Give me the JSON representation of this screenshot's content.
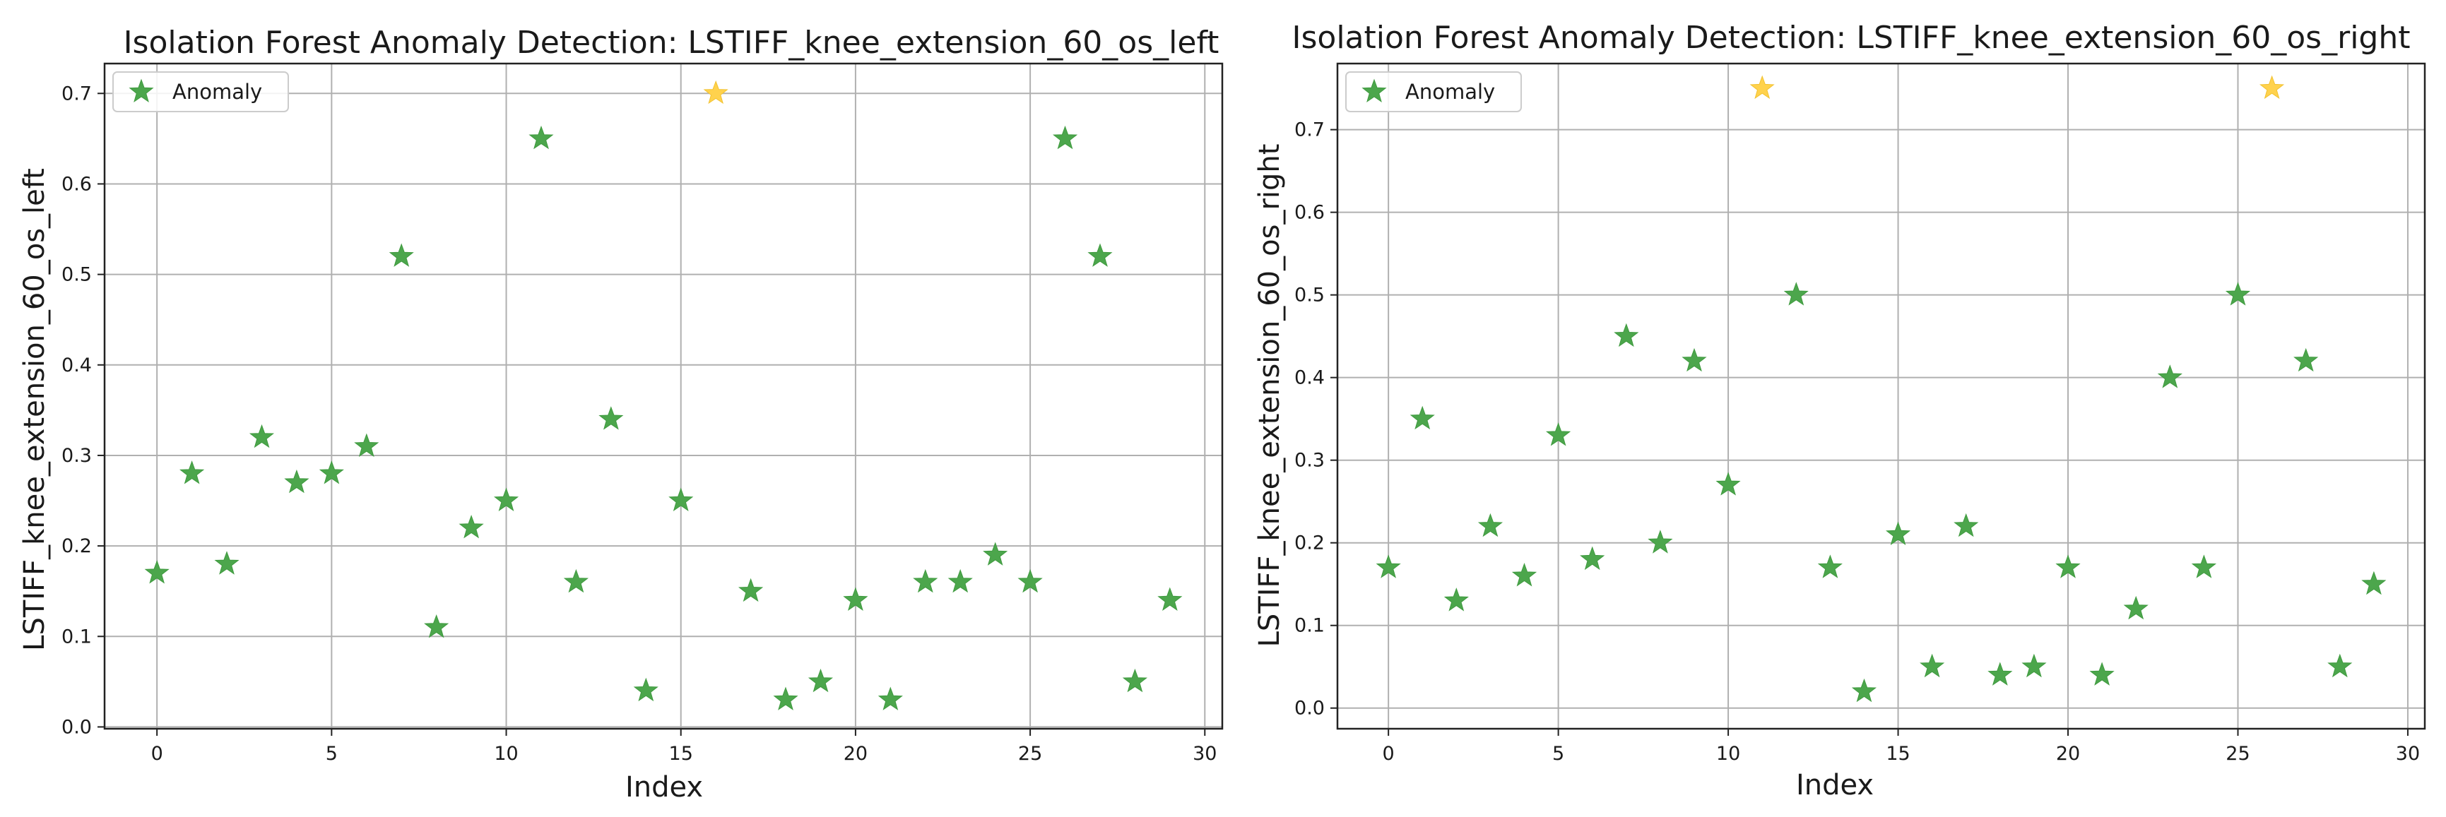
{
  "chart_data": [
    {
      "type": "scatter",
      "title": "Isolation Forest Anomaly Detection: LSTIFF_knee_extension_60_os_left",
      "xlabel": "Index",
      "ylabel": "LSTIFF_knee_extension_60_os_left",
      "xlim": [
        -1.5,
        30.5
      ],
      "ylim": [
        -0.002,
        0.733
      ],
      "xticks": [
        0,
        5,
        10,
        15,
        20,
        25,
        30
      ],
      "yticks": [
        0.0,
        0.1,
        0.2,
        0.3,
        0.4,
        0.5,
        0.6,
        0.7
      ],
      "grid": true,
      "legend": {
        "position": "top-left",
        "entries": [
          "Anomaly"
        ]
      },
      "colors": {
        "normal": "#4ca64c",
        "anomaly": "#ffd24d"
      },
      "x": [
        0,
        1,
        2,
        3,
        4,
        5,
        6,
        7,
        8,
        9,
        10,
        11,
        12,
        13,
        14,
        15,
        16,
        17,
        18,
        19,
        20,
        21,
        22,
        23,
        24,
        25,
        26,
        27,
        28,
        29
      ],
      "y": [
        0.17,
        0.28,
        0.18,
        0.32,
        0.27,
        0.28,
        0.31,
        0.52,
        0.11,
        0.22,
        0.25,
        0.65,
        0.16,
        0.34,
        0.04,
        0.25,
        0.7,
        0.15,
        0.03,
        0.05,
        0.14,
        0.03,
        0.16,
        0.16,
        0.19,
        0.16,
        0.65,
        0.52,
        0.05,
        0.14
      ],
      "anomaly_index": [
        16
      ]
    },
    {
      "type": "scatter",
      "title": "Isolation Forest Anomaly Detection: LSTIFF_knee_extension_60_os_right",
      "xlabel": "Index",
      "ylabel": "LSTIFF_knee_extension_60_os_right",
      "xlim": [
        -1.5,
        30.5
      ],
      "ylim": [
        -0.025,
        0.78
      ],
      "xticks": [
        0,
        5,
        10,
        15,
        20,
        25,
        30
      ],
      "yticks": [
        0.0,
        0.1,
        0.2,
        0.3,
        0.4,
        0.5,
        0.6,
        0.7
      ],
      "grid": true,
      "legend": {
        "position": "top-left",
        "entries": [
          "Anomaly"
        ]
      },
      "colors": {
        "normal": "#4ca64c",
        "anomaly": "#ffd24d"
      },
      "x": [
        0,
        1,
        2,
        3,
        4,
        5,
        6,
        7,
        8,
        9,
        10,
        11,
        12,
        13,
        14,
        15,
        16,
        17,
        18,
        19,
        20,
        21,
        22,
        23,
        24,
        25,
        26,
        27,
        28,
        29
      ],
      "y": [
        0.17,
        0.35,
        0.13,
        0.22,
        0.16,
        0.33,
        0.18,
        0.45,
        0.2,
        0.42,
        0.27,
        0.75,
        0.5,
        0.17,
        0.02,
        0.21,
        0.05,
        0.22,
        0.04,
        0.05,
        0.17,
        0.04,
        0.12,
        0.4,
        0.17,
        0.5,
        0.75,
        0.42,
        0.05,
        0.15
      ],
      "anomaly_index": [
        11,
        26
      ]
    }
  ]
}
